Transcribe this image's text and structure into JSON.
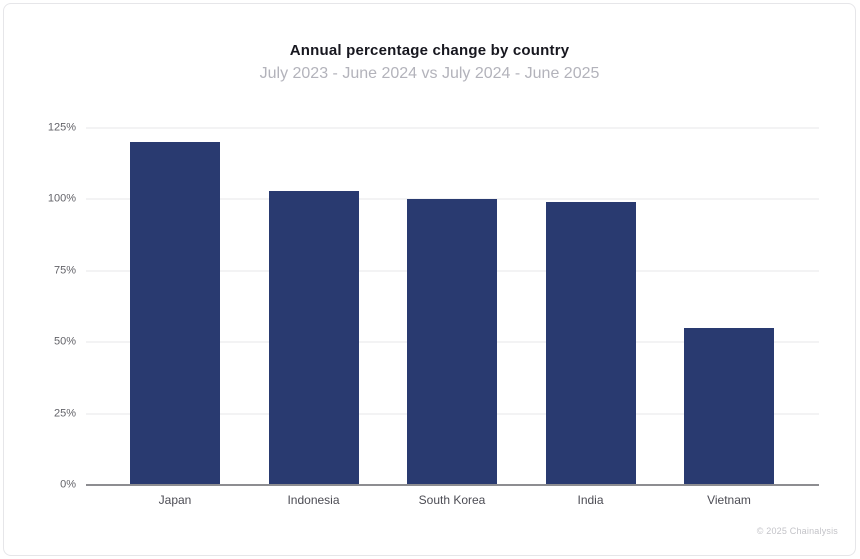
{
  "chart_data": {
    "type": "bar",
    "title": "Annual percentage change by country",
    "subtitle": "July 2023 - June 2024 vs July 2024 - June 2025",
    "categories": [
      "Japan",
      "Indonesia",
      "South Korea",
      "India",
      "Vietnam"
    ],
    "values": [
      120,
      103,
      100,
      99,
      55
    ],
    "xlabel": "",
    "ylabel": "",
    "ylim": [
      0,
      125
    ],
    "yticks": [
      0,
      25,
      50,
      75,
      100,
      125
    ],
    "ytick_suffix": "%",
    "grid": true,
    "legend": "none"
  },
  "colors": {
    "bar": "#293a70",
    "gridline": "#e7e7e9",
    "axis_line": "#8d8d91",
    "title": "#17171f",
    "subtitle": "#b3b3bb"
  },
  "footer": {
    "copyright": "© 2025 Chainalysis"
  }
}
